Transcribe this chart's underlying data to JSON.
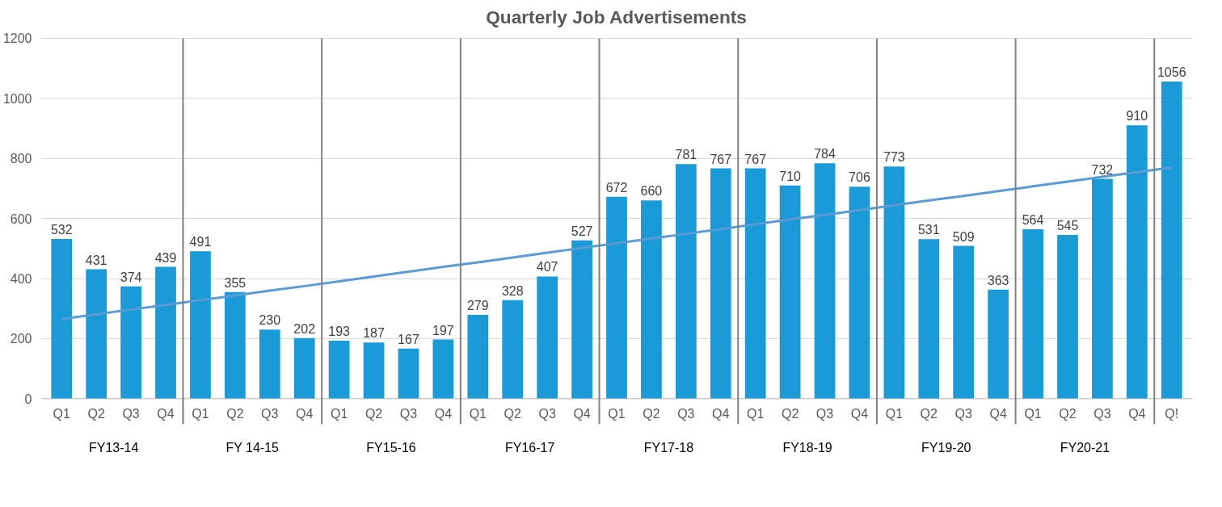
{
  "chart_data": {
    "type": "bar",
    "title": "Quarterly Job Advertisements",
    "categories": [
      "Q1",
      "Q2",
      "Q3",
      "Q4",
      "Q1",
      "Q2",
      "Q3",
      "Q4",
      "Q1",
      "Q2",
      "Q3",
      "Q4",
      "Q1",
      "Q2",
      "Q3",
      "Q4",
      "Q1",
      "Q2",
      "Q3",
      "Q4",
      "Q1",
      "Q2",
      "Q3",
      "Q4",
      "Q1",
      "Q2",
      "Q3",
      "Q4",
      "Q1",
      "Q2",
      "Q3",
      "Q4",
      "Q!"
    ],
    "series": [
      {
        "color": "#1a9bd7",
        "values": [
          532,
          431,
          374,
          439,
          491,
          355,
          230,
          202,
          193,
          187,
          167,
          197,
          279,
          328,
          407,
          527,
          672,
          660,
          781,
          767,
          767,
          710,
          784,
          706,
          773,
          531,
          509,
          363,
          564,
          545,
          732,
          910,
          1056
        ],
        "value_labels": [
          "532",
          "431",
          "374",
          "439",
          "491",
          "355",
          "230",
          "202",
          "193",
          "187",
          "167",
          "197",
          "279",
          "328",
          "407",
          "527",
          "672",
          "660",
          "781",
          "767",
          "767",
          "710",
          "784",
          "706",
          "773",
          "531",
          "509",
          "363",
          "564",
          "545",
          "732",
          "910",
          "1056"
        ]
      },
      {
        "type": "line",
        "color": "#5b9bd5",
        "values": [
          265,
          281,
          297,
          312,
          328,
          344,
          360,
          375,
          391,
          407,
          423,
          439,
          454,
          470,
          486,
          502,
          518,
          533,
          549,
          565,
          581,
          597,
          612,
          628,
          644,
          660,
          675,
          691,
          707,
          723,
          739,
          754,
          770
        ]
      }
    ],
    "annotations": [
      "FY13-14",
      "FY 14-15",
      "FY15-16",
      "FY16-17",
      "FY17-18",
      "FY18-19",
      "FY19-20",
      "FY20-21"
    ],
    "ylim": [
      0,
      1200
    ],
    "yticks": [
      0,
      200,
      400,
      600,
      800,
      1000,
      1200
    ],
    "grid": "y"
  }
}
